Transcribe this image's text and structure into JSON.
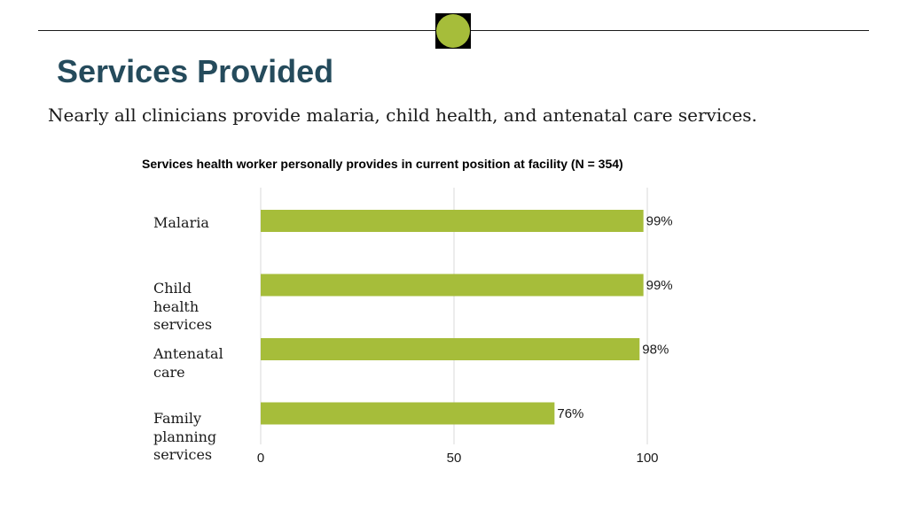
{
  "slide": {
    "title": "Services Provided",
    "subtitle": "Nearly all clinicians provide malaria, child health, and antenatal care services."
  },
  "colors": {
    "title": "#254b5c",
    "bar": "#a6bd3a",
    "badge": "#a6bd3a",
    "gridline": "#d9d9d9"
  },
  "chart_data": {
    "type": "bar",
    "orientation": "horizontal",
    "title": "Services health worker personally provides in current position at facility (N = 354)",
    "categories": [
      "Malaria",
      "Child health services",
      "Antenatal care",
      "Family planning services"
    ],
    "values": [
      99,
      99,
      98,
      76
    ],
    "data_labels": [
      "99%",
      "99%",
      "98%",
      "76%"
    ],
    "xlim": [
      0,
      100
    ],
    "xticks": [
      0,
      50,
      100
    ],
    "xtick_labels": [
      "0",
      "50",
      "100"
    ],
    "grid": true,
    "legend": "none"
  }
}
